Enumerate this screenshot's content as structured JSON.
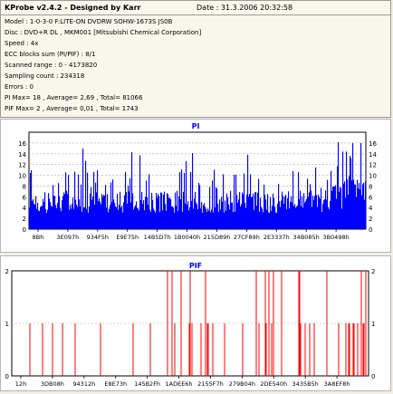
{
  "header": {
    "title": "KProbe v2.4.2 - Designed by Karr",
    "date": "Date : 31.3.2006 20:32:58",
    "lines": [
      "Model : 1-0-3-0 F:LITE-ON DVDRW SOHW-1673S JS0B",
      "Disc : DVD+R DL , MKM001 [Mitsubishi Chemical Corporation]",
      "Speed : 4x",
      "ECC blocks sum (PI/PIF) : 8/1",
      "Scanned range : 0 - 4173820",
      "Sampling count : 234318",
      "Errors : 0",
      "PI Max= 18 , Average= 2,69 , Total= 81066",
      "PIF Max= 2 , Average= 0,01 , Total= 1743"
    ]
  },
  "chart_data": [
    {
      "type": "bar",
      "title": "PI",
      "color": "#0000ff",
      "ylim": [
        0,
        18
      ],
      "yticks": [
        0,
        2,
        4,
        6,
        8,
        10,
        12,
        14,
        16
      ],
      "xtick_labels": [
        "8Bh",
        "3E097h",
        "934F5h",
        "E9E75h",
        "14B5D7h",
        "1B0040h",
        "215D89h",
        "27CF89h",
        "2E3337h",
        "34B085h",
        "3B0498h"
      ],
      "max": 18,
      "average": 2.69
    },
    {
      "type": "bar",
      "title": "PIF",
      "color": "#ff0000",
      "ylim": [
        0,
        2
      ],
      "yticks": [
        0,
        1,
        2
      ],
      "xtick_labels": [
        "12h",
        "3DB08h",
        "94312h",
        "E8E73h",
        "145B2Fh",
        "1ADEE6h",
        "2155F7h",
        "279B04h",
        "2DE540h",
        "3435B5h",
        "3A8EF8h"
      ],
      "max": 2,
      "average": 0.01
    }
  ]
}
